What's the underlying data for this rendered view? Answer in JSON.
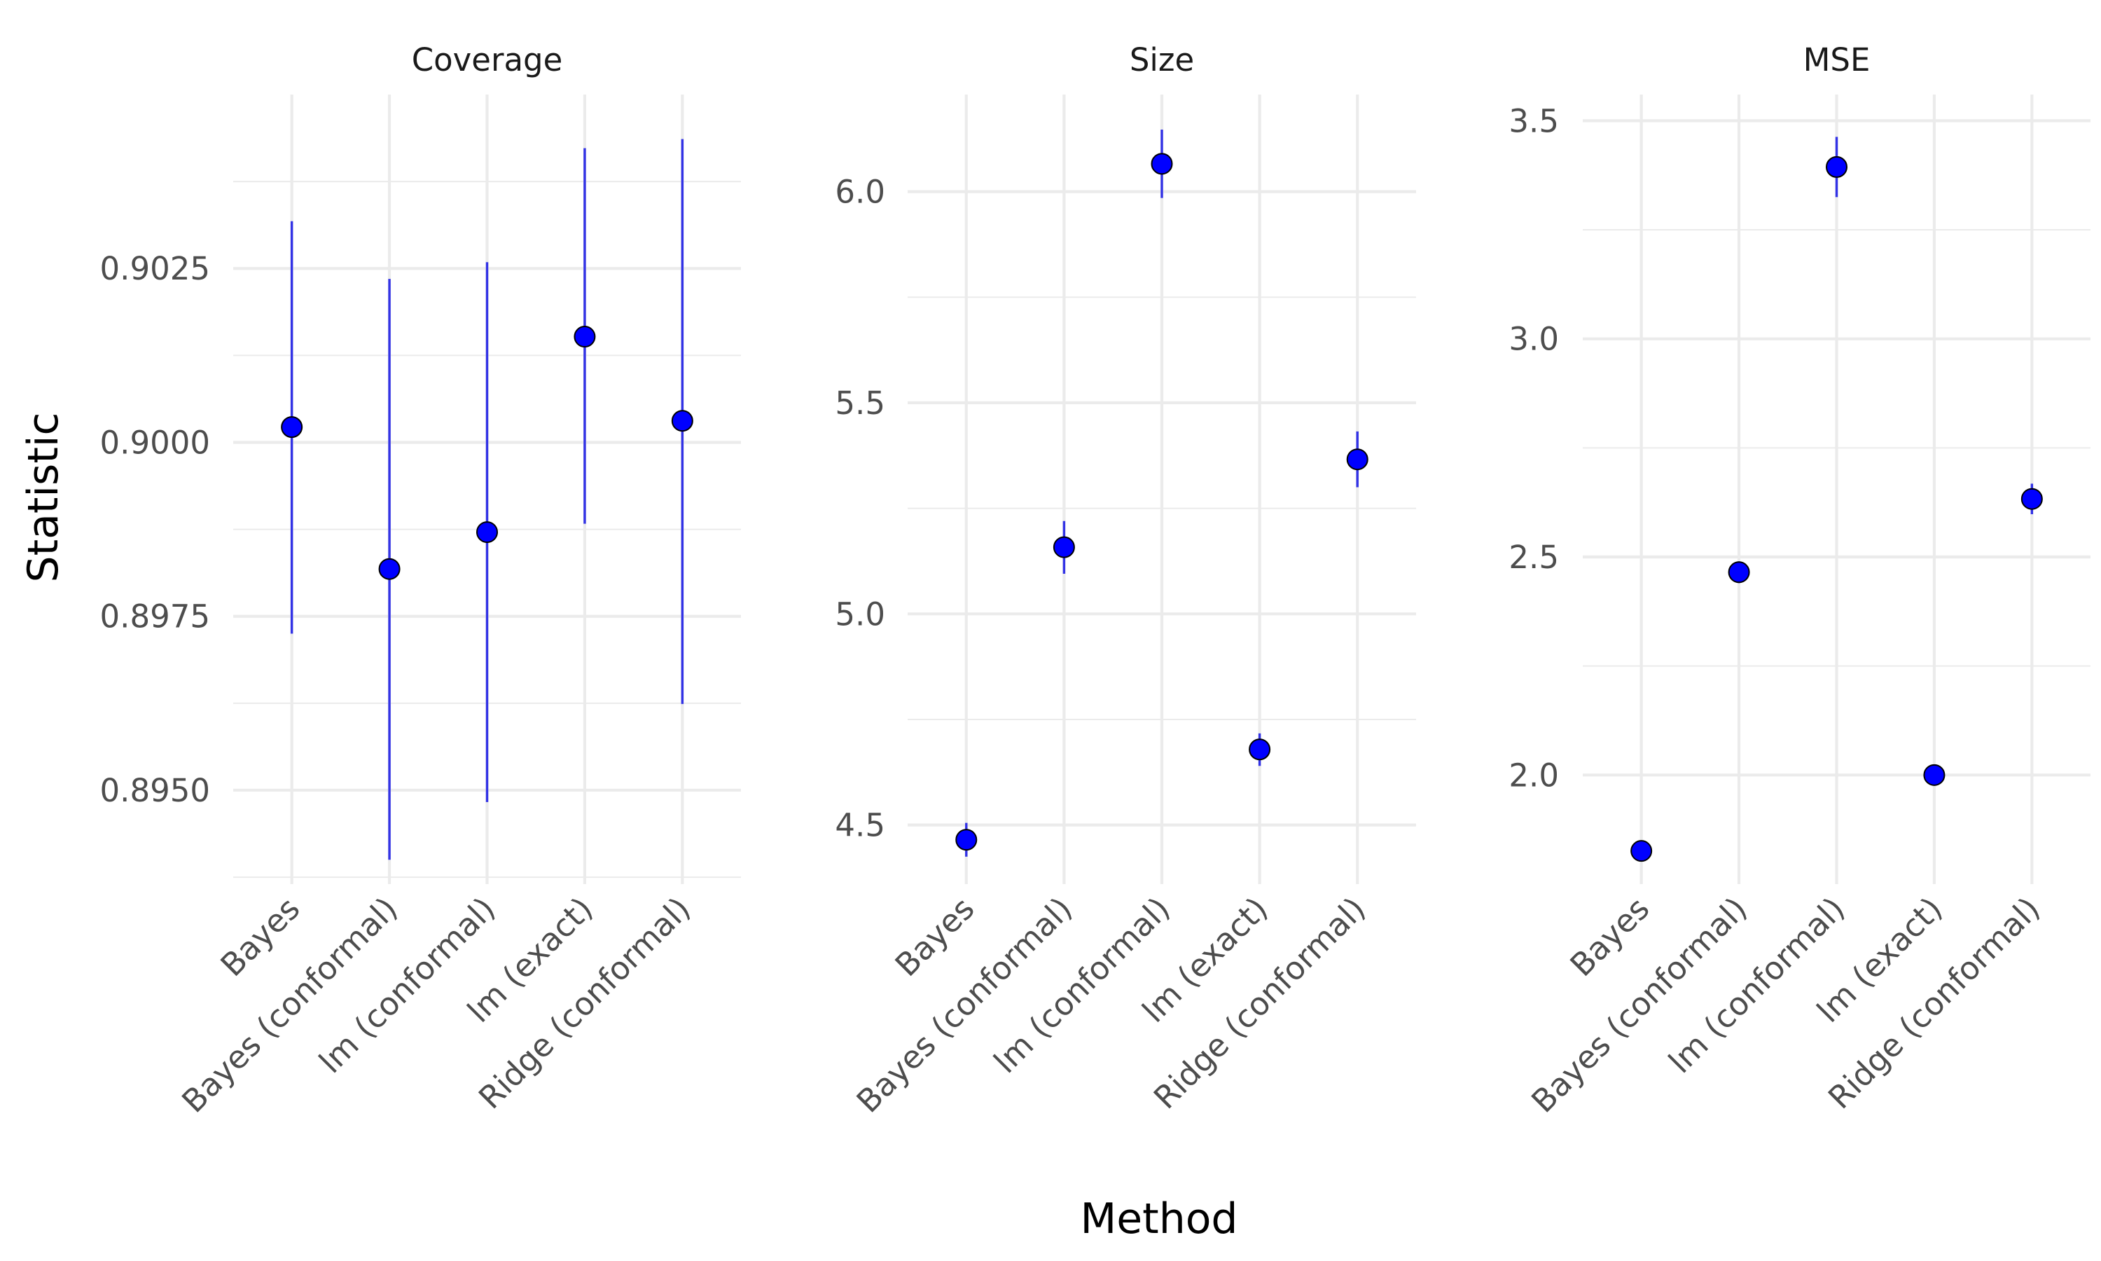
{
  "figure": {
    "xlabel": "Method",
    "ylabel": "Statistic"
  },
  "colors": {
    "point_fill": "#0000ff",
    "point_stroke": "#000000",
    "errorbar": "#3232e6",
    "grid": "#ebebeb",
    "background": "#ffffff"
  },
  "chart_data": [
    {
      "type": "scatter",
      "title": "Coverage",
      "categories": [
        "Bayes",
        "Bayes (conformal)",
        "lm (conformal)",
        "lm (exact)",
        "Ridge (conformal)"
      ],
      "values": [
        0.90022,
        0.89818,
        0.89871,
        0.90152,
        0.90031
      ],
      "lower": [
        0.89725,
        0.894,
        0.89483,
        0.89883,
        0.89624
      ],
      "upper": [
        0.90318,
        0.90235,
        0.90259,
        0.90423,
        0.90436
      ],
      "ylim": [
        0.89365,
        0.905
      ],
      "yticks": [
        0.895,
        0.8975,
        0.9,
        0.9025
      ],
      "yticklabels": [
        "0.8950",
        "0.8975",
        "0.9000",
        "0.9025"
      ],
      "ygrid_minor": [
        0.89375,
        0.89625,
        0.89875,
        0.90125,
        0.90375
      ],
      "grid": true
    },
    {
      "type": "scatter",
      "title": "Size",
      "categories": [
        "Bayes",
        "Bayes (conformal)",
        "lm (conformal)",
        "lm (exact)",
        "Ridge (conformal)"
      ],
      "values": [
        4.465,
        5.158,
        6.066,
        4.679,
        5.366
      ],
      "lower": [
        4.425,
        5.095,
        5.985,
        4.64,
        5.3
      ],
      "upper": [
        4.505,
        5.22,
        6.147,
        4.717,
        5.432
      ],
      "ylim": [
        4.36,
        6.23
      ],
      "yticks": [
        4.5,
        5.0,
        5.5,
        6.0
      ],
      "yticklabels": [
        "4.5",
        "5.0",
        "5.5",
        "6.0"
      ],
      "ygrid_minor": [
        4.75,
        5.25,
        5.75
      ],
      "grid": true
    },
    {
      "type": "scatter",
      "title": "MSE",
      "categories": [
        "Bayes",
        "Bayes (conformal)",
        "lm (conformal)",
        "lm (exact)",
        "Ridge (conformal)"
      ],
      "values": [
        1.826,
        2.465,
        3.394,
        2.0,
        2.633
      ],
      "lower": [
        1.815,
        2.44,
        3.325,
        1.99,
        2.598
      ],
      "upper": [
        1.837,
        2.49,
        3.463,
        2.01,
        2.668
      ],
      "ylim": [
        1.75,
        3.56
      ],
      "yticks": [
        2.0,
        2.5,
        3.0,
        3.5
      ],
      "yticklabels": [
        "2.0",
        "2.5",
        "3.0",
        "3.5"
      ],
      "ygrid_minor": [
        2.25,
        2.75,
        3.25
      ],
      "grid": true
    }
  ]
}
